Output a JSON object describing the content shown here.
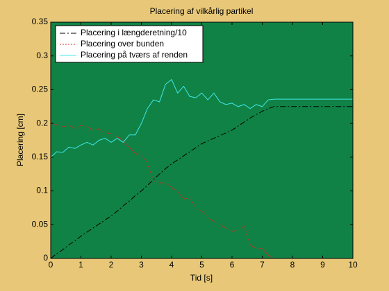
{
  "chart_data": {
    "type": "line",
    "title": "Placering af vilkårlig partikel",
    "xlabel": "Tid [s]",
    "ylabel": "Placering [cm]",
    "x": [
      0,
      0.2,
      0.4,
      0.6,
      0.8,
      1,
      1.2,
      1.4,
      1.6,
      1.8,
      2,
      2.2,
      2.4,
      2.6,
      2.8,
      3,
      3.2,
      3.4,
      3.6,
      3.8,
      4,
      4.2,
      4.4,
      4.6,
      4.8,
      5,
      5.2,
      5.4,
      5.6,
      5.8,
      6,
      6.2,
      6.4,
      6.6,
      6.8,
      7,
      7.2,
      7.4,
      7.6,
      7.8,
      8,
      8.2,
      8.4,
      8.6,
      8.8,
      9,
      9.2,
      9.4,
      9.6,
      9.8,
      10
    ],
    "series": [
      {
        "name": "Placering i længderetning/10",
        "color": "#000000",
        "style": "dashdot",
        "values": [
          0,
          0.007,
          0.013,
          0.02,
          0.026,
          0.033,
          0.039,
          0.045,
          0.051,
          0.057,
          0.063,
          0.07,
          0.078,
          0.085,
          0.093,
          0.1,
          0.108,
          0.117,
          0.125,
          0.133,
          0.14,
          0.146,
          0.152,
          0.158,
          0.164,
          0.17,
          0.174,
          0.178,
          0.182,
          0.186,
          0.19,
          0.196,
          0.202,
          0.208,
          0.213,
          0.218,
          0.222,
          0.225,
          0.225,
          0.225,
          0.225,
          0.225,
          0.225,
          0.225,
          0.225,
          0.225,
          0.225,
          0.225,
          0.225,
          0.225,
          0.225
        ]
      },
      {
        "name": "Placering over bunden",
        "color": "#d03020",
        "style": "dotted",
        "values": [
          0.2,
          0.198,
          0.195,
          0.197,
          0.193,
          0.197,
          0.195,
          0.19,
          0.192,
          0.186,
          0.185,
          0.18,
          0.175,
          0.165,
          0.155,
          0.155,
          0.14,
          0.115,
          0.112,
          0.112,
          0.105,
          0.1,
          0.088,
          0.09,
          0.075,
          0.07,
          0.06,
          0.055,
          0.05,
          0.045,
          0.04,
          0.042,
          0.048,
          0.02,
          0.015,
          0.015,
          0.005,
          0,
          0,
          0,
          0,
          0,
          0,
          0,
          0,
          0,
          0,
          0,
          0,
          0,
          0
        ]
      },
      {
        "name": "Placering på tværs af renden",
        "color": "#40e8e8",
        "style": "solid",
        "values": [
          0.15,
          0.158,
          0.157,
          0.165,
          0.163,
          0.168,
          0.172,
          0.168,
          0.175,
          0.178,
          0.172,
          0.178,
          0.172,
          0.183,
          0.183,
          0.2,
          0.222,
          0.235,
          0.232,
          0.258,
          0.265,
          0.245,
          0.255,
          0.24,
          0.238,
          0.245,
          0.235,
          0.245,
          0.232,
          0.228,
          0.23,
          0.225,
          0.228,
          0.222,
          0.228,
          0.225,
          0.235,
          0.236,
          0.236,
          0.236,
          0.236,
          0.236,
          0.236,
          0.236,
          0.236,
          0.236,
          0.236,
          0.236,
          0.236,
          0.236,
          0.236
        ]
      }
    ],
    "xlim": [
      0,
      10
    ],
    "xticks": [
      0,
      1,
      2,
      3,
      4,
      5,
      6,
      7,
      8,
      9,
      10
    ],
    "ylim": [
      0,
      0.35
    ],
    "yticks": [
      0,
      0.05,
      0.1,
      0.15,
      0.2,
      0.25,
      0.3,
      0.35
    ],
    "background": "#108246",
    "legend": "upper-left"
  }
}
